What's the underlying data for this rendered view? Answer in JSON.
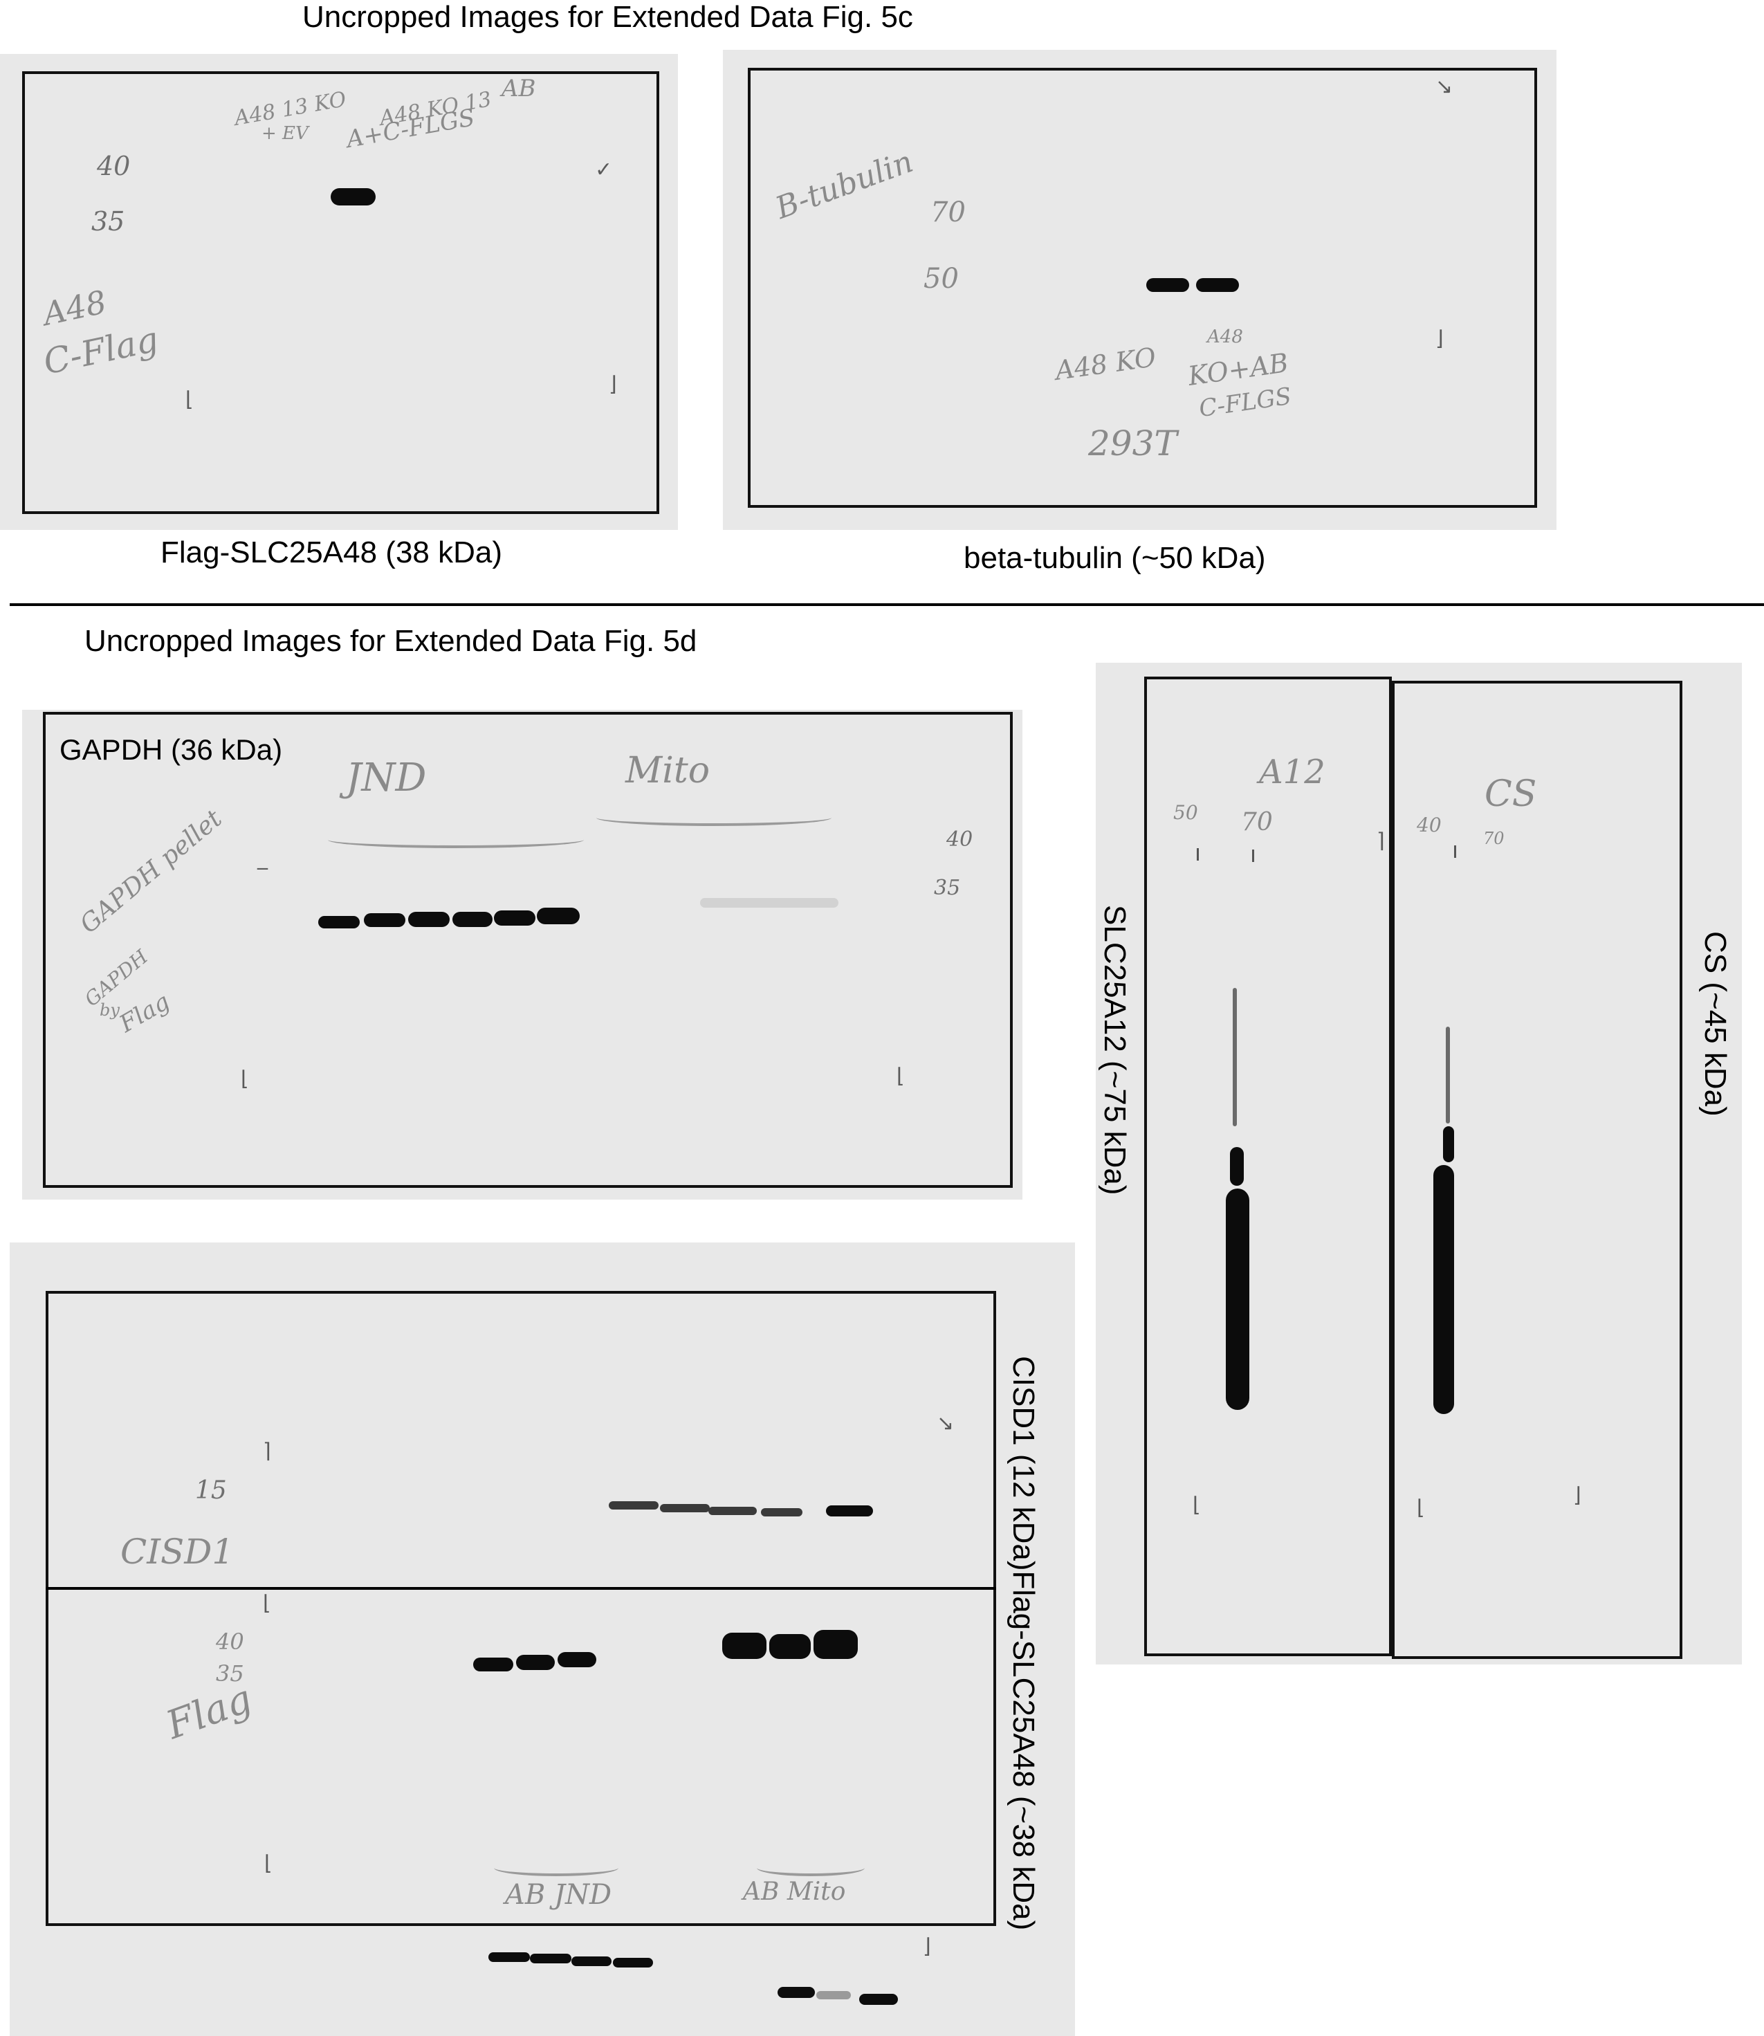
{
  "section_c": {
    "title": "Uncropped Images for Extended Data Fig. 5c",
    "blot_flag": {
      "caption": "Flag-SLC25A48 (38 kDa)",
      "handwriting": [
        "A48 13 KO",
        "+ EV",
        "A48 KO 13",
        "A+C-FLGS",
        "AB",
        "40",
        "35",
        "A48",
        "C-Flag"
      ]
    },
    "blot_tubulin": {
      "caption": "beta-tubulin (~50 kDa)",
      "handwriting": [
        "B-tubulin",
        "70",
        "50",
        "A48 KO",
        "A48",
        "KO+AB",
        "C-FLGS",
        "293T"
      ]
    }
  },
  "section_d": {
    "title": "Uncropped Images for Extended Data Fig. 5d",
    "blot_gapdh": {
      "caption": "GAPDH (36 kDa)",
      "handwriting": [
        "JND",
        "Mito",
        "GAPDH pellet",
        "GAPDH",
        "by",
        "Flag",
        "40",
        "35"
      ]
    },
    "blot_slc25a12_cs": {
      "caption_left": "SLC25A12 (~75 kDa)",
      "caption_right": "CS (~45 kDa)",
      "handwriting": [
        "A12",
        "50",
        "70",
        "CS",
        "40",
        "70"
      ]
    },
    "blot_cisd1_flag": {
      "caption_top": "CISD1 (12 kDa)",
      "caption_bottom": "Flag-SLC25A48 (~38 kDa)",
      "handwriting": [
        "15",
        "CISD1",
        "40",
        "35",
        "Flag",
        "AB JND",
        "AB Mito"
      ]
    }
  }
}
